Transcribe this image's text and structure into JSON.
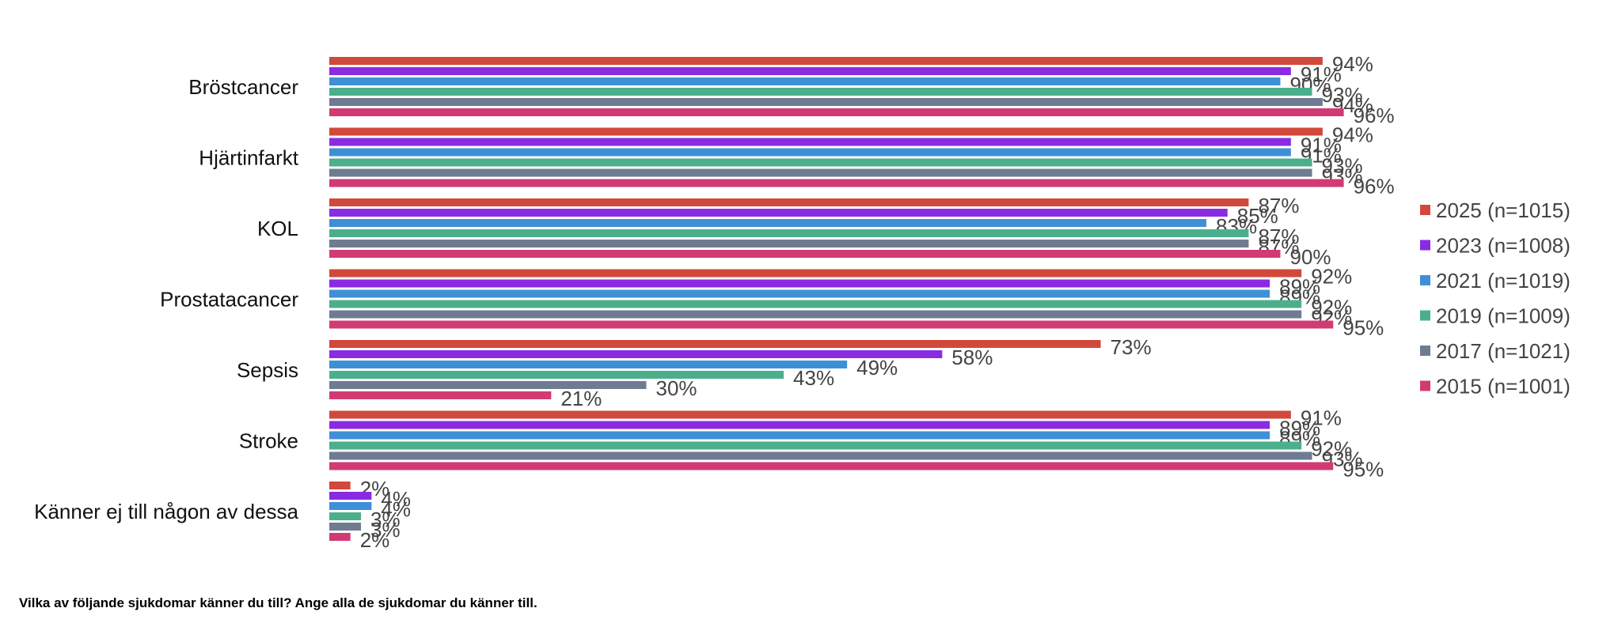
{
  "chart_data": {
    "type": "bar",
    "orientation": "horizontal",
    "categories": [
      "Bröstcancer",
      "Hjärtinfarkt",
      "KOL",
      "Prostatacancer",
      "Sepsis",
      "Stroke",
      "Känner ej till någon av dessa"
    ],
    "series": [
      {
        "name": "2025 (n=1015)",
        "color": "#D1493A",
        "values": [
          94,
          94,
          87,
          92,
          73,
          91,
          2
        ]
      },
      {
        "name": "2023 (n=1008)",
        "color": "#8A2BE2",
        "values": [
          91,
          91,
          85,
          89,
          58,
          89,
          4
        ]
      },
      {
        "name": "2021 (n=1019)",
        "color": "#3F8FD6",
        "values": [
          90,
          91,
          83,
          89,
          49,
          89,
          4
        ]
      },
      {
        "name": "2019 (n=1009)",
        "color": "#4CAF8C",
        "values": [
          93,
          93,
          87,
          92,
          43,
          92,
          3
        ]
      },
      {
        "name": "2017 (n=1021)",
        "color": "#6E7B91",
        "values": [
          94,
          93,
          87,
          92,
          30,
          93,
          3
        ]
      },
      {
        "name": "2015 (n=1001)",
        "color": "#D23A74",
        "values": [
          96,
          96,
          90,
          95,
          21,
          95,
          2
        ]
      }
    ],
    "value_suffix": "%",
    "xlim": [
      0,
      100
    ],
    "grid": false,
    "legend_position": "right"
  },
  "footnote": "Vilka av följande sjukdomar känner du till? Ange alla de sjukdomar du känner till."
}
